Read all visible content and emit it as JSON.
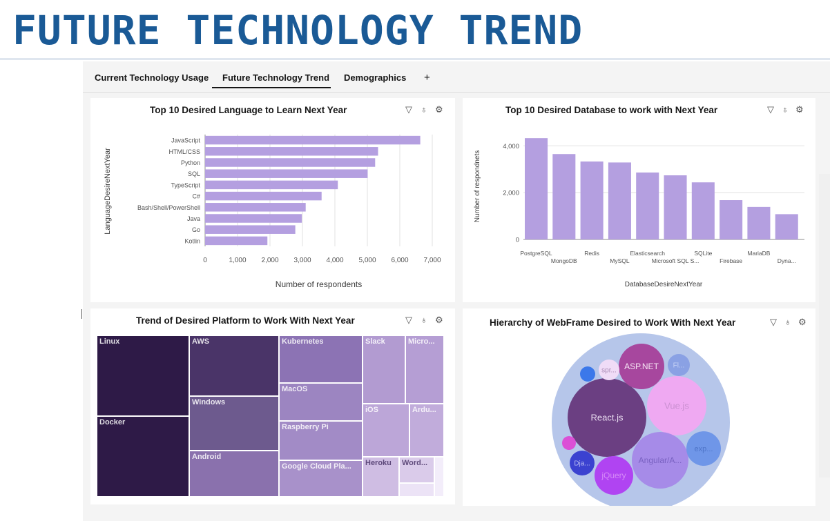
{
  "page_title": "FUTURE TECHNOLOGY TREND",
  "tabs": [
    {
      "label": "Current Technology Usage",
      "active": false
    },
    {
      "label": "Future Technology Trend",
      "active": true
    },
    {
      "label": "Demographics",
      "active": false
    }
  ],
  "add_tab_label": "+",
  "panel_icons": {
    "filter": "filter-icon",
    "insight": "lightbulb-icon",
    "settings": "gear-icon",
    "filter_glyph": "▽",
    "insight_glyph": "♁",
    "settings_glyph": "⚙"
  },
  "colors": {
    "bar": "#b49fe0",
    "title": "#1a5a96"
  },
  "chart_data": [
    {
      "type": "bar",
      "orientation": "horizontal",
      "title": "Top 10 Desired Language to Learn Next Year",
      "ylabel": "LanguageDesireNextYear",
      "xlabel": "Number of respondents",
      "categories": [
        "JavaScript",
        "HTML/CSS",
        "Python",
        "SQL",
        "TypeScript",
        "C#",
        "Bash/Shell/PowerShell",
        "Java",
        "Go",
        "Kotlin"
      ],
      "values": [
        6630,
        5330,
        5240,
        5010,
        4090,
        3590,
        3100,
        2980,
        2780,
        1920
      ],
      "xticks": [
        "0",
        "1,000",
        "2,000",
        "3,000",
        "4,000",
        "5,000",
        "6,000",
        "7,000"
      ],
      "xlim": [
        0,
        7000
      ],
      "grid": true
    },
    {
      "type": "bar",
      "title": "Top 10 Desired Database to work with Next Year",
      "ylabel": "Number of respondnets",
      "xlabel": "DatabaseDesireNextYear",
      "categories": [
        "PostgreSQL",
        "MongoDB",
        "Redis",
        "MySQL",
        "Elasticsearch",
        "Microsoft SQL S...",
        "SQLite",
        "Firebase",
        "MariaDB",
        "Dyna..."
      ],
      "values": [
        4330,
        3650,
        3330,
        3290,
        2860,
        2740,
        2440,
        1680,
        1390,
        1080
      ],
      "yticks": [
        "0",
        "2,000",
        "4,000"
      ],
      "ylim": [
        0,
        4600
      ],
      "grid": true
    },
    {
      "type": "treemap",
      "title": "Trend of Desired Platform to Work With Next Year",
      "labels": [
        "Linux",
        "Docker",
        "AWS",
        "Windows",
        "Android",
        "Kubernetes",
        "MacOS",
        "Raspberry Pi",
        "Google Cloud Pla...",
        "Slack",
        "Micro...",
        "iOS",
        "Ardu...",
        "Heroku",
        "Word..."
      ]
    },
    {
      "type": "bubble",
      "title": "Hierarchy of WebFrame Desired to Work With Next Year",
      "labels": [
        "React.js",
        "Vue.js",
        "Angular/A...",
        "ASP.NET",
        "jQuery",
        "exp...",
        "Dja...",
        "spr...",
        "Fl..."
      ]
    }
  ]
}
